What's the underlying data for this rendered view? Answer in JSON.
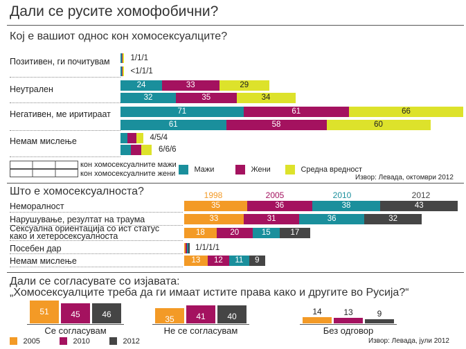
{
  "title": "Дали се русите хомофобични?",
  "colors": {
    "teal": "#1a8f9c",
    "magenta": "#a4125f",
    "yellow": "#dde22b",
    "orange": "#f39a26",
    "dark": "#454545"
  },
  "section1": {
    "question": "Кој е вашиот однос кон хомосексуалците?",
    "legend_male": "кон хомосексуалните мажи",
    "legend_female": "кон хомосексуалните жени",
    "legend_items": [
      "Мажи",
      "Жени",
      "Средна вредност"
    ],
    "source": "Извор: Левада, октомври 2012"
  },
  "section2": {
    "question": "Што е хомосексуалноста?",
    "years": [
      "1998",
      "2005",
      "2010",
      "2012"
    ],
    "source": ""
  },
  "section3": {
    "question_line1": "Дали се согласувате со изјавата:",
    "question_line2": "„Хомосексуалците треба да ги имаат истите права како и другите во Русија?“",
    "legend_years": [
      "2005",
      "2010",
      "2012"
    ],
    "source": "Извор: Левада, јули 2012"
  },
  "chart_data": [
    {
      "type": "bar",
      "orientation": "horizontal",
      "stacked": true,
      "title": "Кој е вашиот однос кон хомосексуалците?",
      "categories": [
        "Позитивен, ги почитувам",
        "Неутрален",
        "Негативен, ме иритираат",
        "Немам мислење"
      ],
      "series": [
        {
          "name": "Мажи",
          "values": [
            [
              1,
              1
            ],
            [
              24,
              32
            ],
            [
              71,
              61
            ],
            [
              4,
              6
            ]
          ]
        },
        {
          "name": "Жени",
          "values": [
            [
              1,
              1
            ],
            [
              33,
              35
            ],
            [
              61,
              58
            ],
            [
              5,
              6
            ]
          ]
        },
        {
          "name": "Средна вредност",
          "values": [
            [
              1,
              1
            ],
            [
              29,
              34
            ],
            [
              66,
              60
            ],
            [
              4,
              6
            ]
          ]
        }
      ],
      "row_texts": [
        [
          "1/1/1",
          "<1/1/1"
        ],
        [
          "",
          ""
        ],
        [
          "",
          ""
        ],
        [
          "4/5/4",
          "6/6/6"
        ]
      ],
      "sub_rows": [
        "кон хомосексуалните мажи",
        "кон хомосексуалните жени"
      ]
    },
    {
      "type": "bar",
      "orientation": "horizontal",
      "stacked": true,
      "title": "Што е хомосексуалноста?",
      "categories": [
        "Неморалност",
        "Нарушување, резултат на траума",
        "Сексуална ориентација со ист статус како и хетеросексуалноста",
        "Посебен дар",
        "Немам мислење"
      ],
      "category_lines": [
        [
          "Неморалност"
        ],
        [
          "Нарушување, резултат на траума"
        ],
        [
          "Сексуална ориентација со ист статус",
          "како и хетеросексуалноста"
        ],
        [
          "Посебен дар"
        ],
        [
          "Немам мислење"
        ]
      ],
      "series": [
        {
          "name": "1998",
          "values": [
            35,
            33,
            18,
            1,
            13
          ]
        },
        {
          "name": "2005",
          "values": [
            36,
            31,
            20,
            1,
            12
          ]
        },
        {
          "name": "2010",
          "values": [
            38,
            36,
            15,
            1,
            11
          ]
        },
        {
          "name": "2012",
          "values": [
            43,
            32,
            17,
            1,
            9
          ]
        }
      ],
      "row_texts": [
        "",
        "",
        "",
        "1/1/1/1",
        ""
      ]
    },
    {
      "type": "bar",
      "orientation": "vertical",
      "title": "„Хомосексуалците треба да ги имаат истите права како и другите во Русија?“",
      "categories": [
        "Се согласувам",
        "Не се согласувам",
        "Без одговор"
      ],
      "series": [
        {
          "name": "2005",
          "values": [
            51,
            35,
            14
          ]
        },
        {
          "name": "2010",
          "values": [
            45,
            41,
            13
          ]
        },
        {
          "name": "2012",
          "values": [
            46,
            40,
            9
          ]
        }
      ]
    }
  ]
}
